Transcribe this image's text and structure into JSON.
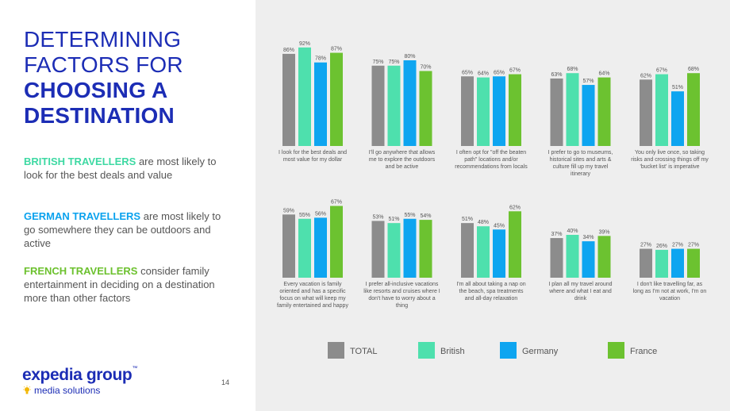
{
  "title": {
    "line1": "DETERMINING",
    "line2": "FACTORS FOR",
    "line3": "CHOOSING A",
    "line4": "DESTINATION"
  },
  "insights": [
    {
      "highlight": "BRITISH TRAVELLERS",
      "text": " are most likely to look for the best deals and value",
      "color": "#3ed9a3"
    },
    {
      "highlight": "GERMAN TRAVELLERS",
      "text": " are most likely to go somewhere they can be outdoors and active",
      "color": "#0aa2ee"
    },
    {
      "highlight": "FRENCH TRAVELLERS",
      "text": " consider family entertainment in deciding on a destination more than other factors",
      "color": "#6cc12e"
    }
  ],
  "logo": {
    "main": "expedia group",
    "tm": "™",
    "sub": "media solutions"
  },
  "page_number": "14",
  "colors": {
    "TOTAL": "#8c8c8c",
    "British": "#4ee0ad",
    "Germany": "#0ea5f0",
    "France": "#6cc230",
    "title": "#1c2db5"
  },
  "chart_data": {
    "type": "bar",
    "title": "",
    "xlabel": "",
    "ylabel": "",
    "ylim": [
      0,
      100
    ],
    "grid": false,
    "legend_position": "bottom",
    "series_names": [
      "TOTAL",
      "British",
      "Germany",
      "France"
    ],
    "categories": [
      {
        "label": [
          "I look for the best deals and",
          "most value for my dollar"
        ],
        "values": [
          86,
          92,
          78,
          87
        ]
      },
      {
        "label": [
          "I'll go anywhere that allows",
          "me to explore the outdoors",
          "and be active"
        ],
        "values": [
          75,
          75,
          80,
          70
        ]
      },
      {
        "label": [
          "I often opt for \"off the beaten",
          "path\" locations and/or",
          "recommendations from locals"
        ],
        "values": [
          65,
          64,
          65,
          67
        ]
      },
      {
        "label": [
          "I prefer to go to museums,",
          "historical sites and arts &",
          "culture fill up my travel",
          "itinerary"
        ],
        "values": [
          63,
          68,
          57,
          64
        ]
      },
      {
        "label": [
          "You only live once, so taking",
          "risks and crossing things off my",
          "'bucket list' is imperative"
        ],
        "values": [
          62,
          67,
          51,
          68
        ]
      },
      {
        "label": [
          "Every vacation is family",
          "oriented and has a specific",
          "focus on what will keep my",
          "family entertained and happy"
        ],
        "values": [
          59,
          55,
          56,
          67
        ]
      },
      {
        "label": [
          "I prefer all-inclusive vacations",
          "like resorts and cruises where I",
          "don't have to worry about a",
          "thing"
        ],
        "values": [
          53,
          51,
          55,
          54
        ]
      },
      {
        "label": [
          "I'm all about taking a nap on",
          "the beach, spa treatments",
          "and all-day relaxation"
        ],
        "values": [
          51,
          48,
          45,
          62
        ]
      },
      {
        "label": [
          "I plan all my travel around",
          "where and what I eat and",
          "drink"
        ],
        "values": [
          37,
          40,
          34,
          39
        ]
      },
      {
        "label": [
          "I don't like travelling far, as",
          "long as I'm not at work, I'm on",
          "vacation"
        ],
        "values": [
          27,
          26,
          27,
          27
        ]
      }
    ]
  }
}
